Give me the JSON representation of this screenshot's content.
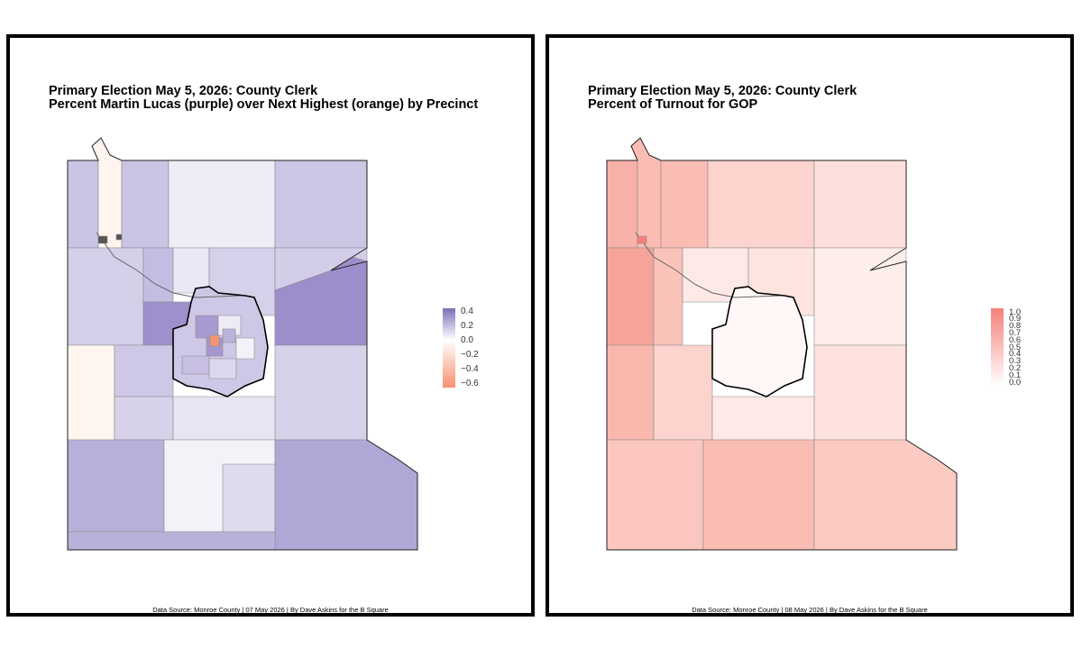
{
  "maps": [
    {
      "title_line1": "Primary Election May 5, 2026: County Clerk",
      "title_line2": "Percent Martin Lucas (purple) over Next Highest (orange) by Precinct",
      "caption": "Data Source: Monroe County | 07 May 2026 | By Dave Askins for the B Square",
      "legend": {
        "labels": [
          "0.4",
          "0.2",
          "0.0",
          "−0.2",
          "−0.4",
          "−0.6"
        ],
        "color_max": "#7e6eb8",
        "color_mid": "#ffffff",
        "color_min": "#f5926f"
      }
    },
    {
      "title_line1": "Primary Election May 5, 2026: County Clerk",
      "title_line2": "Percent of Turnout for GOP",
      "caption": "Data Source: Monroe County | 08 May 2026 | By Dave Askins for the B Square",
      "legend": {
        "labels": [
          "1.0",
          "0.9",
          "0.8",
          "0.7",
          "0.6",
          "0.5",
          "0.4",
          "0.3",
          "0.2",
          "0.1",
          "0.0"
        ],
        "color_max": "#f4817a",
        "color_min": "#ffffff"
      }
    }
  ]
}
